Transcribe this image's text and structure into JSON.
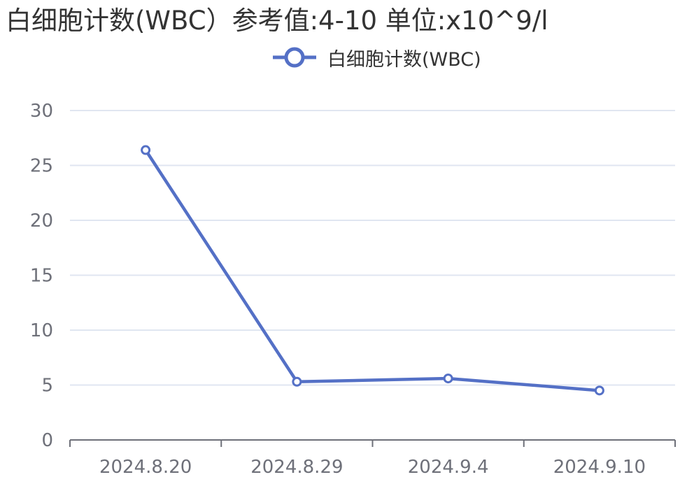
{
  "chart_data": {
    "type": "line",
    "title": "白细胞计数(WBC）参考值:4-10 单位:x10^9/l",
    "categories": [
      "2024.8.20",
      "2024.8.29",
      "2024.9.4",
      "2024.9.10"
    ],
    "series": [
      {
        "name": "白细胞计数(WBC)",
        "values": [
          26.4,
          5.3,
          5.6,
          4.5
        ]
      }
    ],
    "ylim": [
      0,
      30
    ],
    "yticks": [
      0,
      5,
      10,
      15,
      20,
      25,
      30
    ],
    "xlabel": "",
    "ylabel": "",
    "grid": true,
    "legend_position": "top-center",
    "colors": {
      "series": "#5470c6",
      "grid": "#e0e6f1",
      "axis": "#6e7079",
      "text": "#333333"
    }
  }
}
